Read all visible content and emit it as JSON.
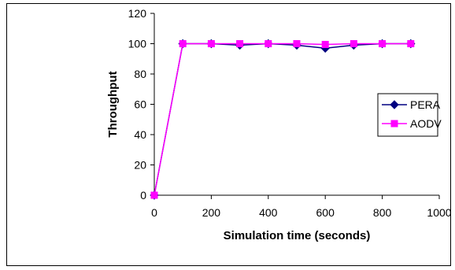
{
  "chart_data": {
    "type": "line",
    "title": "",
    "xlabel": "Simulation time (seconds)",
    "ylabel": "Throughput",
    "xlim": [
      0,
      1000
    ],
    "ylim": [
      0,
      120
    ],
    "xticks": [
      0,
      200,
      400,
      600,
      800,
      1000
    ],
    "yticks": [
      0,
      20,
      40,
      60,
      80,
      100,
      120
    ],
    "grid": false,
    "legend_position": "right",
    "series": [
      {
        "name": "PERA",
        "color": "#000080",
        "marker": "diamond",
        "x": [
          0,
          100,
          200,
          300,
          400,
          500,
          600,
          700,
          800,
          900
        ],
        "y": [
          0,
          100,
          100,
          99,
          100,
          99,
          97,
          99,
          100,
          100
        ]
      },
      {
        "name": "AODV",
        "color": "#ff00ff",
        "marker": "square",
        "x": [
          0,
          100,
          200,
          300,
          400,
          500,
          600,
          700,
          800,
          900
        ],
        "y": [
          0,
          100,
          100,
          100,
          100,
          100,
          99.5,
          100,
          100,
          100
        ]
      }
    ]
  }
}
